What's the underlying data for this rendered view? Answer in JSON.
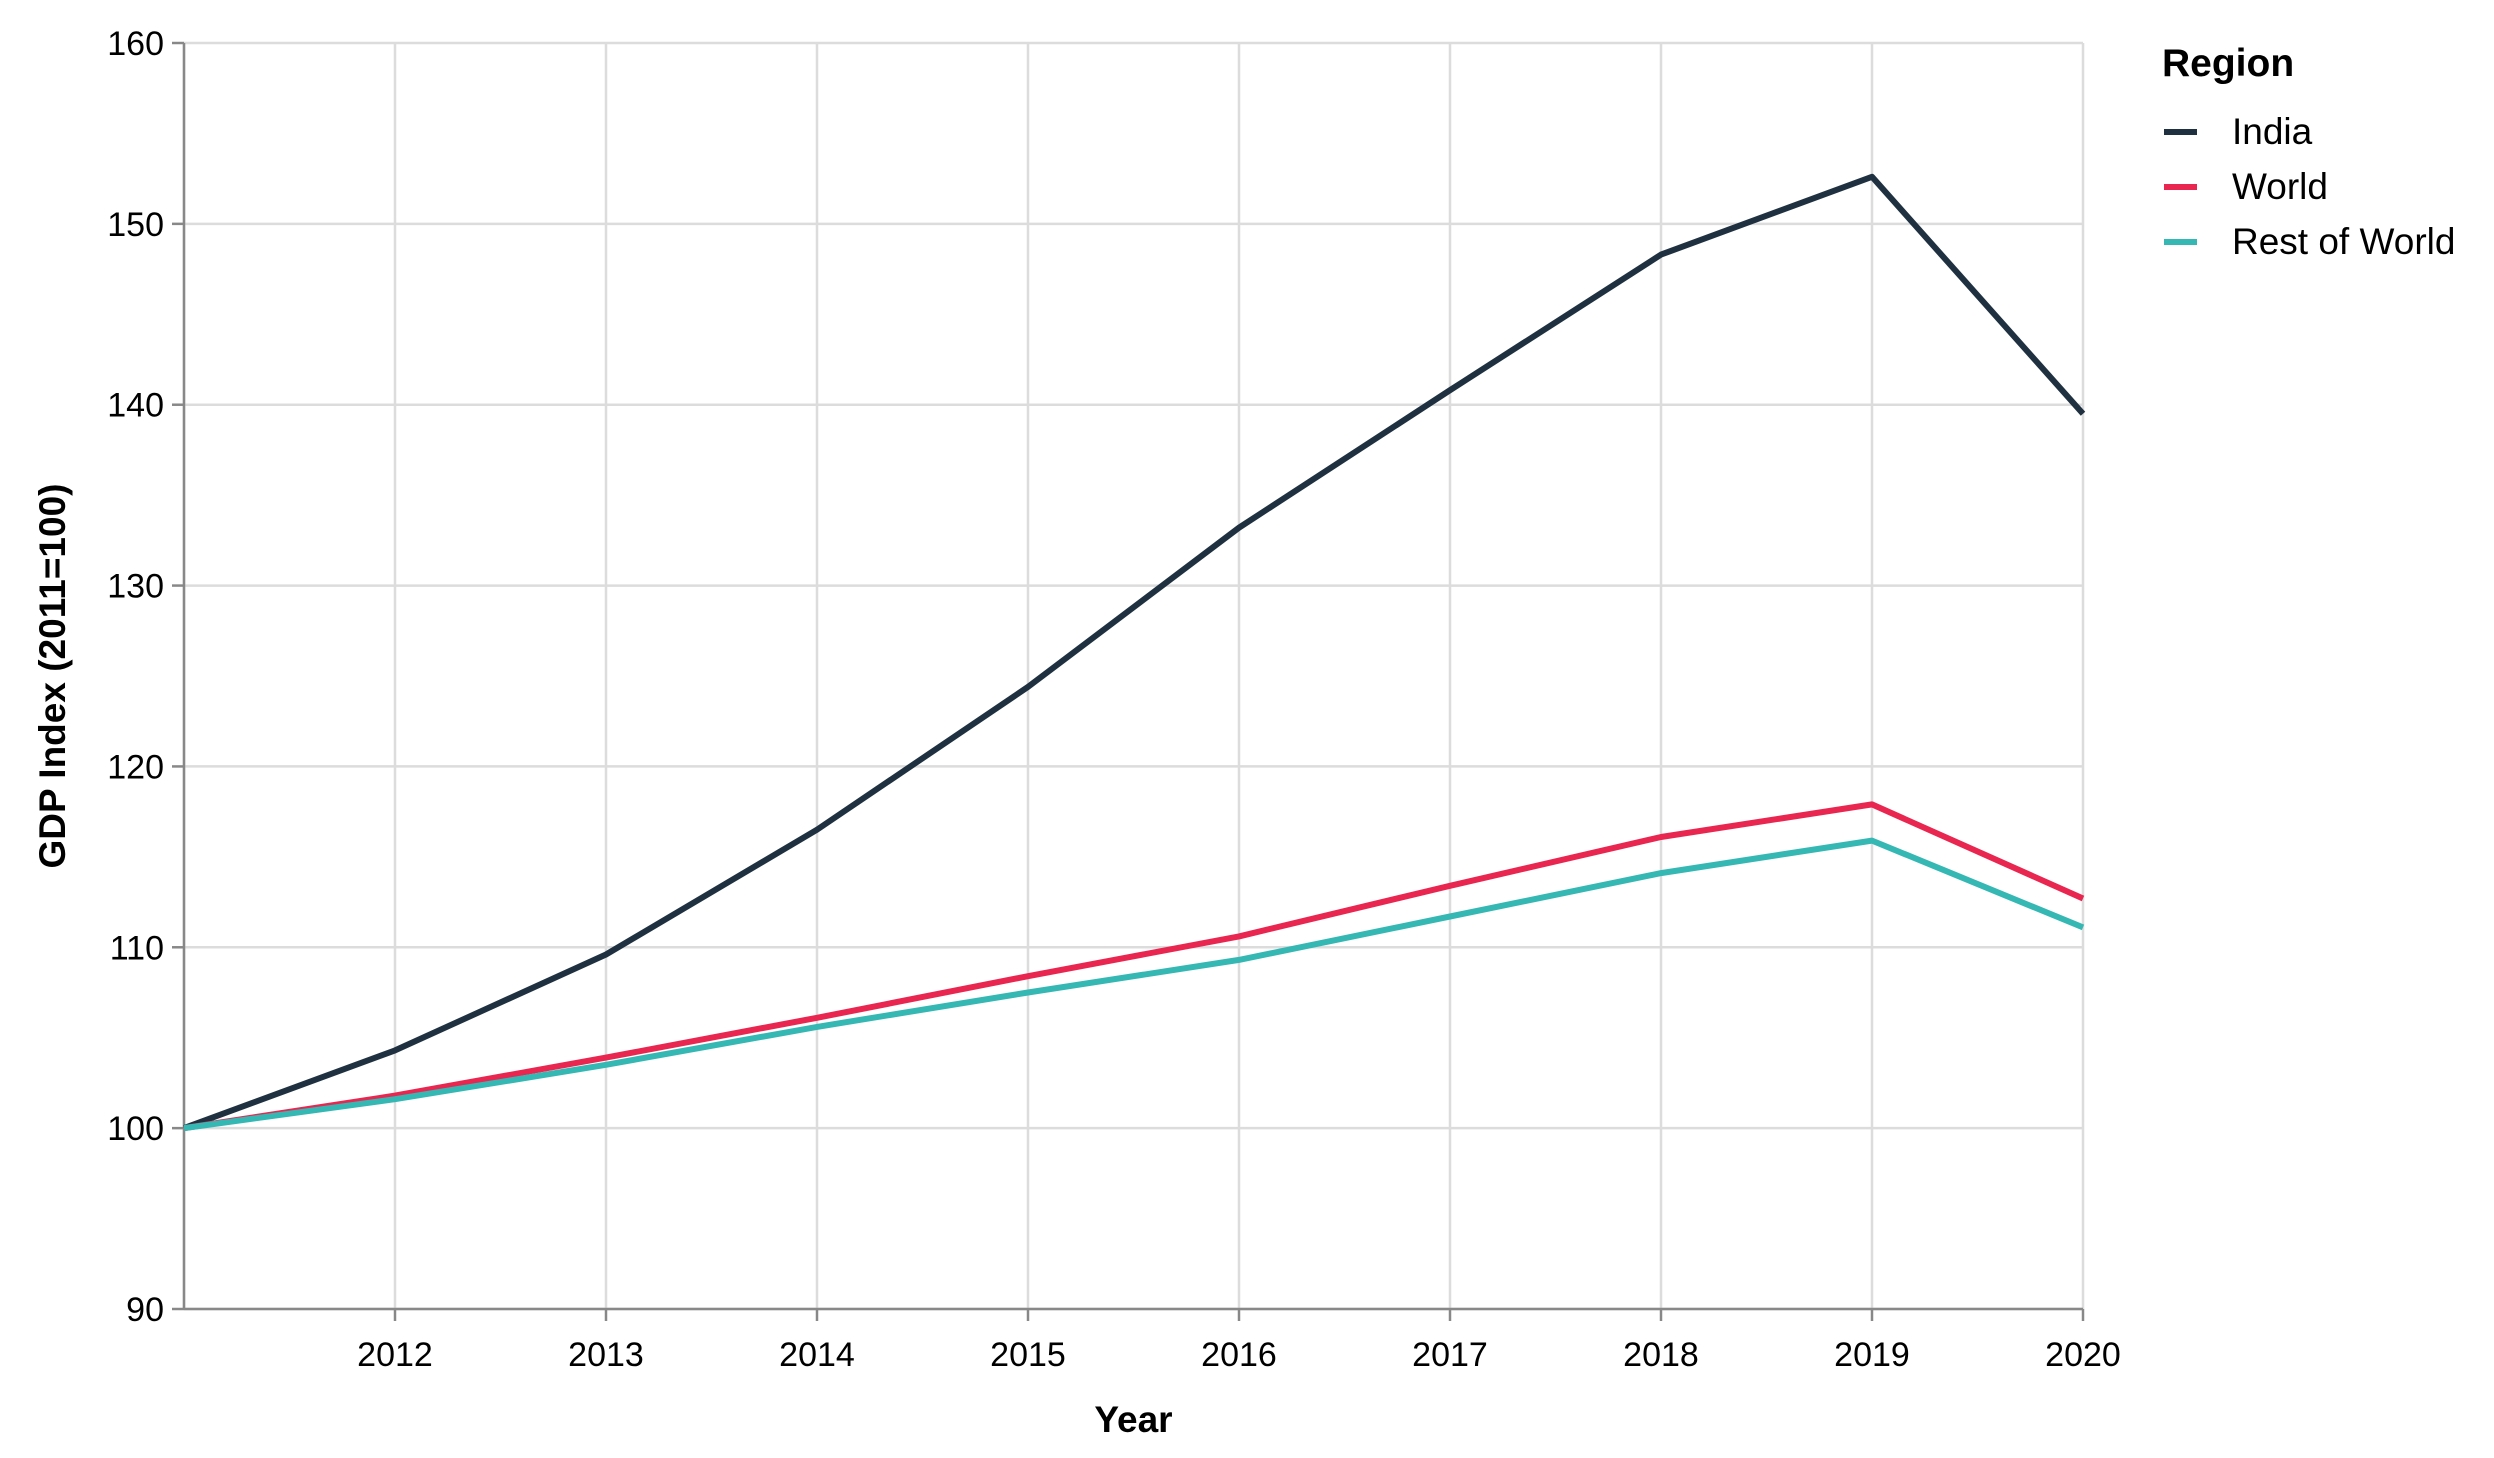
{
  "chart_data": {
    "type": "line",
    "x": [
      2011,
      2012,
      2013,
      2014,
      2015,
      2016,
      2017,
      2018,
      2019,
      2020
    ],
    "x_tick_labels": [
      "2012",
      "2013",
      "2014",
      "2015",
      "2016",
      "2017",
      "2018",
      "2019",
      "2020"
    ],
    "y_tick_labels": [
      "90",
      "100",
      "110",
      "120",
      "130",
      "140",
      "150",
      "160"
    ],
    "series": [
      {
        "name": "India",
        "color": "#1f3140",
        "values": [
          100,
          104.3,
          109.6,
          116.5,
          124.4,
          133.2,
          140.8,
          148.3,
          152.6,
          139.5
        ]
      },
      {
        "name": "World",
        "color": "#e8264f",
        "values": [
          100,
          101.8,
          103.9,
          106.1,
          108.4,
          110.6,
          113.4,
          116.1,
          117.9,
          112.7
        ]
      },
      {
        "name": "Rest of World",
        "color": "#35b8b4",
        "values": [
          100,
          101.6,
          103.5,
          105.6,
          107.5,
          109.3,
          111.7,
          114.1,
          115.9,
          111.1
        ]
      }
    ],
    "xlabel": "Year",
    "ylabel": "GDP Index (2011=100)",
    "xlim": [
      2011,
      2020
    ],
    "ylim": [
      90,
      160
    ],
    "grid": true,
    "legend": {
      "title": "Region",
      "placement": "right"
    }
  }
}
